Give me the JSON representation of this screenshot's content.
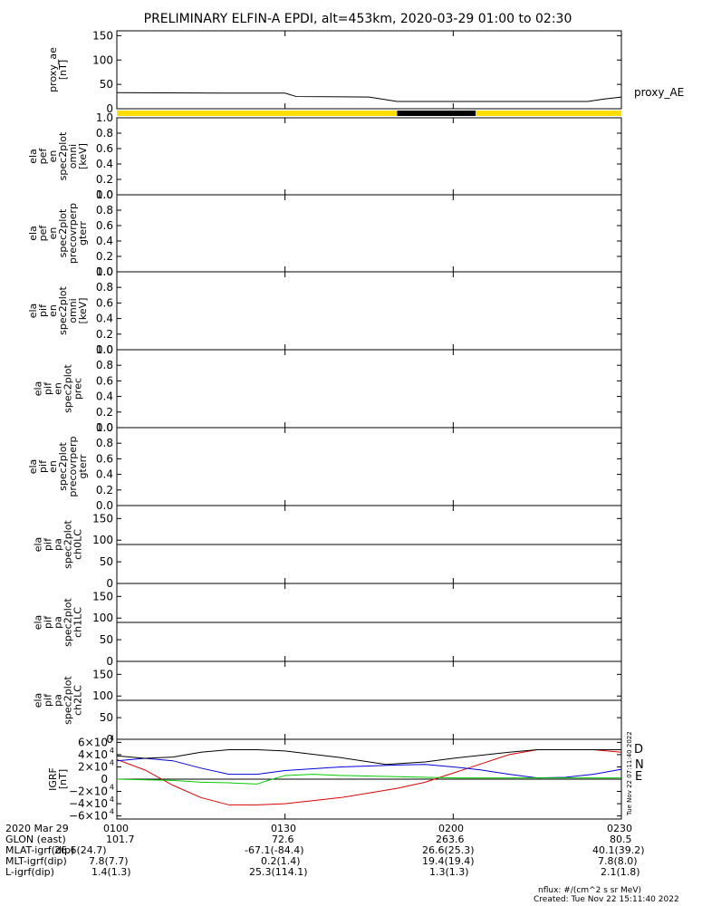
{
  "title": "PRELIMINARY ELFIN-A EPDI, alt=453km, 2020-03-29 01:00 to 02:30",
  "colors": {
    "yellow": "#ffdd00",
    "black": "#000000",
    "red": "#dd0000",
    "blue": "#0000dd",
    "green": "#00cc00"
  },
  "chart_data": [
    {
      "type": "line",
      "ylabel": [
        "proxy_ae",
        "[nT]"
      ],
      "yticks": [
        "150",
        "100",
        "50",
        "0"
      ],
      "ylim": [
        0,
        160
      ],
      "series": [
        {
          "name": "proxy_AE",
          "points": [
            [
              0,
              33
            ],
            [
              18,
              32
            ],
            [
              30,
              32
            ],
            [
              32,
              25
            ],
            [
              45,
              24
            ],
            [
              50,
              15
            ],
            [
              75,
              15
            ],
            [
              78,
              15
            ],
            [
              84,
              15
            ],
            [
              87,
              20
            ],
            [
              90,
              24
            ]
          ]
        }
      ]
    },
    {
      "type": "bar",
      "description_free": true,
      "segments": [
        {
          "from": 0,
          "to": 50,
          "color": "yellow"
        },
        {
          "from": 50,
          "to": 64,
          "color": "black"
        },
        {
          "from": 64,
          "to": 90,
          "color": "yellow"
        }
      ]
    },
    {
      "type": "heatmap",
      "ylabel": [
        "ela",
        "pef",
        "en",
        "spec2plot",
        "omni",
        "[keV]"
      ],
      "yticks": [
        "1.0",
        "0.8",
        "0.6",
        "0.4",
        "0.2",
        "0.0"
      ],
      "ylim": [
        0,
        1
      ]
    },
    {
      "type": "heatmap",
      "ylabel": [
        "ela",
        "pef",
        "en",
        "spec2plot",
        "precovrperp",
        "gterr"
      ],
      "yticks": [
        "1.0",
        "0.8",
        "0.6",
        "0.4",
        "0.2",
        "0.0"
      ],
      "ylim": [
        0,
        1
      ]
    },
    {
      "type": "heatmap",
      "ylabel": [
        "ela",
        "pif",
        "en",
        "spec2plot",
        "omni",
        "[keV]"
      ],
      "yticks": [
        "1.0",
        "0.8",
        "0.6",
        "0.4",
        "0.2",
        "0.0"
      ],
      "ylim": [
        0,
        1
      ]
    },
    {
      "type": "heatmap",
      "ylabel": [
        "ela",
        "pif",
        "en",
        "spec2plot",
        "prec"
      ],
      "yticks": [
        "1.0",
        "0.8",
        "0.6",
        "0.4",
        "0.2",
        "0.0"
      ],
      "ylim": [
        0,
        1
      ]
    },
    {
      "type": "heatmap",
      "ylabel": [
        "ela",
        "pif",
        "en",
        "spec2plot",
        "precovrperp",
        "gterr"
      ],
      "yticks": [
        "1.0",
        "0.8",
        "0.6",
        "0.4",
        "0.2",
        "0.0"
      ],
      "ylim": [
        0,
        1
      ]
    },
    {
      "type": "heatmap",
      "ylabel": [
        "ela",
        "pif",
        "pa",
        "spec2plot",
        "ch0LC"
      ],
      "yticks": [
        "150",
        "100",
        "50",
        "0"
      ],
      "ylim": [
        0,
        180
      ],
      "hline": 90
    },
    {
      "type": "heatmap",
      "ylabel": [
        "ela",
        "pif",
        "pa",
        "spec2plot",
        "ch1LC"
      ],
      "yticks": [
        "150",
        "100",
        "50",
        "0"
      ],
      "ylim": [
        0,
        180
      ],
      "hline": 90
    },
    {
      "type": "heatmap",
      "ylabel": [
        "ela",
        "pif",
        "pa",
        "spec2plot",
        "ch2LC"
      ],
      "yticks": [
        "150",
        "100",
        "50",
        "0"
      ],
      "ylim": [
        0,
        180
      ],
      "hline": 90
    },
    {
      "type": "line",
      "ylabel": [
        "IGRF",
        "[nT]"
      ],
      "yticks": [
        [
          "6×10",
          "4"
        ],
        [
          "4×10",
          "4"
        ],
        [
          "2×10",
          "4"
        ],
        [
          "0",
          ""
        ],
        [
          "−2×10",
          "4"
        ],
        [
          "−4×10",
          "4"
        ],
        [
          "−6×10",
          "4"
        ]
      ],
      "ylim": [
        -65000,
        65000
      ],
      "series": [
        {
          "name": "D",
          "color": "red",
          "points": [
            [
              0,
              32000
            ],
            [
              5,
              15000
            ],
            [
              10,
              -10000
            ],
            [
              15,
              -30000
            ],
            [
              20,
              -42000
            ],
            [
              25,
              -42000
            ],
            [
              30,
              -40000
            ],
            [
              40,
              -30000
            ],
            [
              50,
              -15000
            ],
            [
              55,
              -5000
            ],
            [
              60,
              10000
            ],
            [
              65,
              25000
            ],
            [
              70,
              40000
            ],
            [
              75,
              48000
            ],
            [
              80,
              48000
            ],
            [
              85,
              48000
            ],
            [
              90,
              44000
            ]
          ]
        },
        {
          "name": "N",
          "color": "blue",
          "points": [
            [
              0,
              30000
            ],
            [
              5,
              34000
            ],
            [
              10,
              30000
            ],
            [
              15,
              18000
            ],
            [
              20,
              8000
            ],
            [
              25,
              8000
            ],
            [
              30,
              14000
            ],
            [
              40,
              20000
            ],
            [
              50,
              23000
            ],
            [
              55,
              24000
            ],
            [
              60,
              20000
            ],
            [
              65,
              15000
            ],
            [
              70,
              8000
            ],
            [
              75,
              2000
            ],
            [
              80,
              3000
            ],
            [
              85,
              8000
            ],
            [
              90,
              16000
            ]
          ]
        },
        {
          "name": "E",
          "color": "green",
          "points": [
            [
              0,
              0
            ],
            [
              10,
              -2000
            ],
            [
              15,
              -5000
            ],
            [
              20,
              -6000
            ],
            [
              25,
              -8000
            ],
            [
              27,
              -2000
            ],
            [
              30,
              6000
            ],
            [
              35,
              8000
            ],
            [
              40,
              6000
            ],
            [
              50,
              4000
            ],
            [
              60,
              2000
            ],
            [
              70,
              2000
            ],
            [
              80,
              2000
            ],
            [
              90,
              2000
            ]
          ]
        },
        {
          "name": "",
          "color": "black",
          "points": [
            [
              0,
              38000
            ],
            [
              5,
              34000
            ],
            [
              10,
              36000
            ],
            [
              15,
              44000
            ],
            [
              20,
              48000
            ],
            [
              25,
              48000
            ],
            [
              30,
              46000
            ],
            [
              40,
              35000
            ],
            [
              48,
              24000
            ],
            [
              55,
              28000
            ],
            [
              60,
              34000
            ],
            [
              70,
              44000
            ],
            [
              75,
              48000
            ],
            [
              85,
              48000
            ],
            [
              90,
              48000
            ]
          ]
        }
      ]
    }
  ],
  "xaxis": {
    "ticks": [
      "0100",
      "0130",
      "0200",
      "0230"
    ],
    "tick_minutes": [
      0,
      30,
      60,
      90
    ],
    "range": [
      0,
      90
    ]
  },
  "side_labels": {
    "proxy": "proxy_AE",
    "D": "D",
    "N": "N",
    "E": "E",
    "vertical": "Tue Nov 22 07:11:40 2022"
  },
  "orbit_table": [
    [
      "2020 Mar 29",
      "0100",
      "0130",
      "0200",
      "0230"
    ],
    [
      "GLON (east)",
      "101.7",
      "72.6",
      "263.6",
      "80.5"
    ],
    [
      "MLAT-igrf(dip)",
      "26.6(24.7)",
      "-67.1(-84.4)",
      "26.6(25.3)",
      "40.1(39.2)"
    ],
    [
      "MLT-igrf(dip)",
      "7.8(7.7)",
      "0.2(1.4)",
      "19.4(19.4)",
      "7.8(8.0)"
    ],
    [
      "L-igrf(dip)",
      "1.4(1.3)",
      "25.3(114.1)",
      "1.3(1.3)",
      "2.1(1.8)"
    ]
  ],
  "footer": {
    "nflux": "nflux: #/(cm^2 s sr MeV)",
    "created": "Created: Tue Nov 22 15:11:40 2022"
  }
}
